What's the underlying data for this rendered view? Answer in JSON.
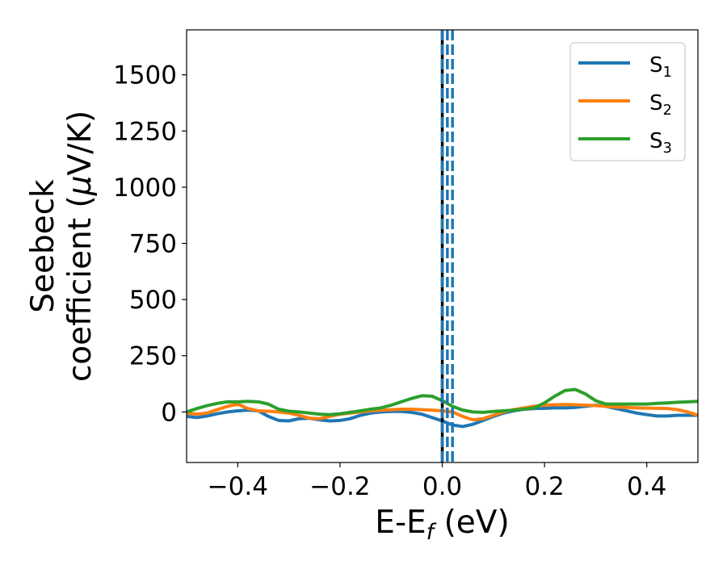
{
  "chart_data": {
    "type": "line",
    "title": "",
    "xlabel": {
      "main": "E-E",
      "sub": "f",
      "tail": " (eV)"
    },
    "ylabel": {
      "line1": "Seebeck",
      "line2_pre": "coefficient  (",
      "line2_mu": "μ",
      "line2_post": "V/K)"
    },
    "xlim": [
      -0.5,
      0.5
    ],
    "ylim": [
      -225,
      1700
    ],
    "xticks": [
      {
        "value": -0.4,
        "label": "−0.4"
      },
      {
        "value": -0.2,
        "label": "−0.2"
      },
      {
        "value": 0.0,
        "label": "0.0"
      },
      {
        "value": 0.2,
        "label": "0.2"
      },
      {
        "value": 0.4,
        "label": "0.4"
      }
    ],
    "yticks": [
      {
        "value": 0,
        "label": "0"
      },
      {
        "value": 250,
        "label": "250"
      },
      {
        "value": 500,
        "label": "500"
      },
      {
        "value": 750,
        "label": "750"
      },
      {
        "value": 1000,
        "label": "1000"
      },
      {
        "value": 1250,
        "label": "1250"
      },
      {
        "value": 1500,
        "label": "1500"
      }
    ],
    "grid": false,
    "legend_position": "top-right",
    "vlines": [
      {
        "x": 0.0,
        "color": "#000000",
        "style": "solid"
      },
      {
        "x": 0.0,
        "color": "#1f77b4",
        "style": "dashed"
      },
      {
        "x": 0.01,
        "color": "#1f77b4",
        "style": "dashed"
      },
      {
        "x": 0.02,
        "color": "#1f77b4",
        "style": "dashed"
      }
    ],
    "series": [
      {
        "name": "S",
        "sub": "1",
        "color": "#1f77b4",
        "x": [
          -0.5,
          -0.48,
          -0.46,
          -0.44,
          -0.42,
          -0.4,
          -0.38,
          -0.36,
          -0.34,
          -0.32,
          -0.3,
          -0.28,
          -0.26,
          -0.24,
          -0.22,
          -0.2,
          -0.18,
          -0.16,
          -0.14,
          -0.12,
          -0.1,
          -0.08,
          -0.06,
          -0.04,
          -0.02,
          0.0,
          0.02,
          0.04,
          0.06,
          0.08,
          0.1,
          0.12,
          0.14,
          0.16,
          0.18,
          0.2,
          0.22,
          0.24,
          0.26,
          0.28,
          0.3,
          0.32,
          0.34,
          0.36,
          0.38,
          0.4,
          0.42,
          0.44,
          0.46,
          0.48,
          0.5
        ],
        "y": [
          -20,
          -25,
          -18,
          -8,
          0,
          5,
          8,
          5,
          -20,
          -38,
          -40,
          -30,
          -28,
          -35,
          -40,
          -38,
          -30,
          -15,
          -5,
          0,
          2,
          2,
          -2,
          -10,
          -25,
          -40,
          -58,
          -65,
          -55,
          -38,
          -20,
          -5,
          5,
          12,
          15,
          16,
          18,
          18,
          20,
          25,
          30,
          25,
          15,
          5,
          -5,
          -12,
          -18,
          -18,
          -15,
          -15,
          -15
        ]
      },
      {
        "name": "S",
        "sub": "2",
        "color": "#ff7f0e",
        "x": [
          -0.5,
          -0.48,
          -0.46,
          -0.44,
          -0.42,
          -0.4,
          -0.38,
          -0.36,
          -0.34,
          -0.32,
          -0.3,
          -0.28,
          -0.26,
          -0.24,
          -0.22,
          -0.2,
          -0.18,
          -0.16,
          -0.14,
          -0.12,
          -0.1,
          -0.08,
          -0.06,
          -0.04,
          -0.02,
          0.0,
          0.02,
          0.04,
          0.06,
          0.08,
          0.1,
          0.12,
          0.14,
          0.16,
          0.18,
          0.2,
          0.22,
          0.24,
          0.26,
          0.28,
          0.3,
          0.32,
          0.34,
          0.36,
          0.38,
          0.4,
          0.42,
          0.44,
          0.46,
          0.48,
          0.5
        ],
        "y": [
          -5,
          -10,
          -5,
          10,
          25,
          35,
          15,
          5,
          3,
          0,
          -5,
          -15,
          -28,
          -30,
          -20,
          -10,
          -5,
          0,
          5,
          8,
          10,
          12,
          12,
          10,
          8,
          5,
          0,
          -20,
          -35,
          -30,
          -15,
          0,
          10,
          18,
          25,
          30,
          32,
          33,
          32,
          30,
          28,
          25,
          22,
          20,
          18,
          17,
          16,
          15,
          10,
          0,
          -15
        ]
      },
      {
        "name": "S",
        "sub": "3",
        "color": "#2ca02c",
        "x": [
          -0.5,
          -0.48,
          -0.46,
          -0.44,
          -0.42,
          -0.4,
          -0.38,
          -0.36,
          -0.34,
          -0.32,
          -0.3,
          -0.28,
          -0.26,
          -0.24,
          -0.22,
          -0.2,
          -0.18,
          -0.16,
          -0.14,
          -0.12,
          -0.1,
          -0.08,
          -0.06,
          -0.04,
          -0.02,
          0.0,
          0.02,
          0.04,
          0.06,
          0.08,
          0.1,
          0.12,
          0.14,
          0.16,
          0.18,
          0.2,
          0.22,
          0.24,
          0.26,
          0.28,
          0.3,
          0.32,
          0.34,
          0.36,
          0.38,
          0.4,
          0.42,
          0.44,
          0.46,
          0.48,
          0.5
        ],
        "y": [
          0,
          15,
          28,
          38,
          45,
          45,
          47,
          45,
          35,
          12,
          3,
          0,
          -5,
          -10,
          -12,
          -8,
          -2,
          5,
          12,
          18,
          30,
          45,
          60,
          72,
          70,
          50,
          25,
          8,
          0,
          -2,
          2,
          5,
          8,
          12,
          18,
          40,
          70,
          95,
          100,
          80,
          50,
          35,
          35,
          35,
          35,
          35,
          38,
          40,
          43,
          45,
          47
        ]
      }
    ]
  }
}
